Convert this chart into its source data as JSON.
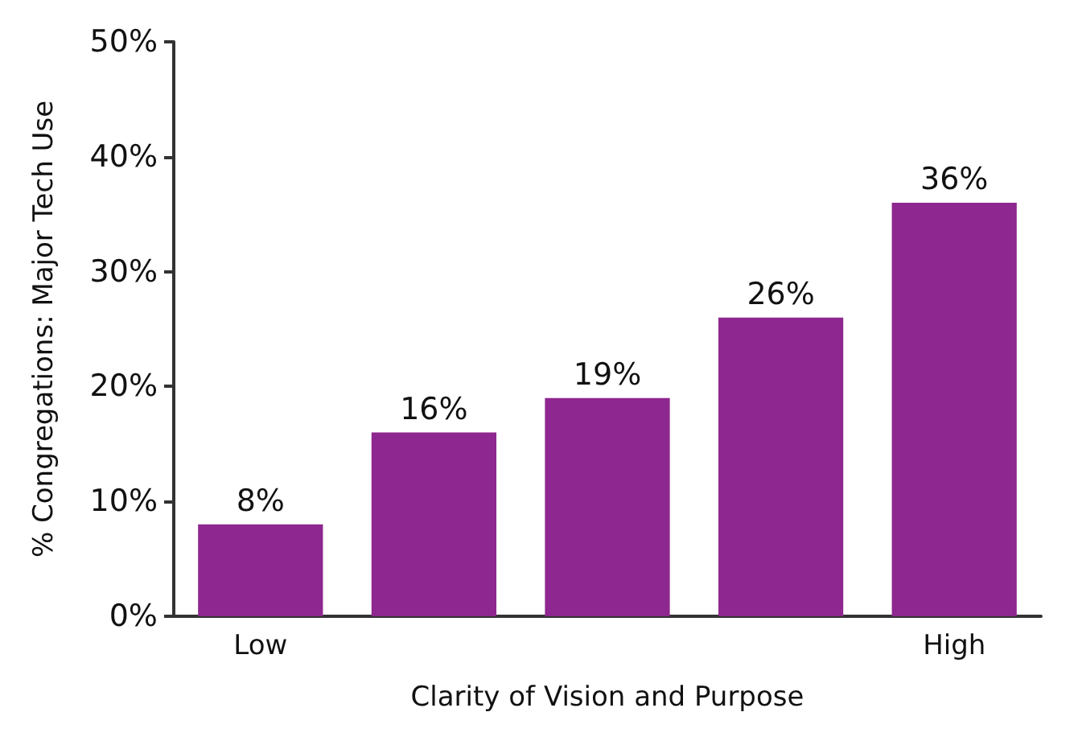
{
  "chart_data": {
    "type": "bar",
    "xlabel": "Clarity of Vision and Purpose",
    "ylabel": "% Congregations: Major Tech Use",
    "categories": [
      "Low",
      null,
      null,
      null,
      "High"
    ],
    "values": [
      8,
      16,
      19,
      26,
      36
    ],
    "value_labels": [
      "8%",
      "16%",
      "19%",
      "26%",
      "36%"
    ],
    "color": "#8e278f",
    "ylim": [
      0,
      50
    ],
    "yticks": [
      {
        "value": 0,
        "label": "0%"
      },
      {
        "value": 10,
        "label": "10%"
      },
      {
        "value": 20,
        "label": "20%"
      },
      {
        "value": 30,
        "label": "30%"
      },
      {
        "value": 40,
        "label": "40%"
      },
      {
        "value": 50,
        "label": "50%"
      }
    ],
    "grid": false
  }
}
